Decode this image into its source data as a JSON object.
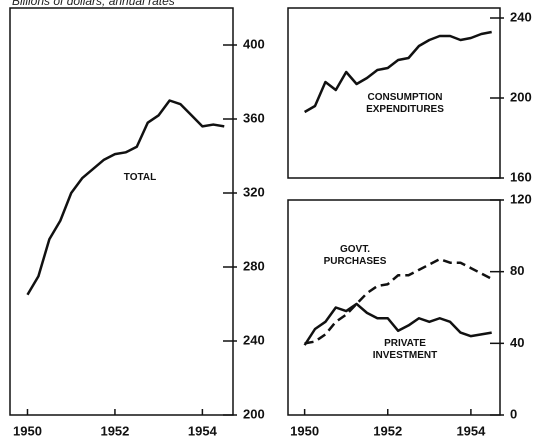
{
  "header": {
    "text": "Billions of dollars, annual rates"
  },
  "chart_data": [
    {
      "type": "line",
      "x": [
        1950,
        1950.25,
        1950.5,
        1950.75,
        1951,
        1951.25,
        1951.5,
        1951.75,
        1952,
        1952.25,
        1952.5,
        1952.75,
        1953,
        1953.25,
        1953.5,
        1953.75,
        1954,
        1954.25,
        1954.5
      ],
      "series": [
        {
          "name": "TOTAL",
          "color": "#111",
          "values": [
            265,
            275,
            295,
            305,
            320,
            328,
            333,
            338,
            341,
            342,
            345,
            358,
            362,
            370,
            368,
            362,
            356,
            357,
            356
          ]
        }
      ],
      "xlim": [
        1949.6,
        1954.7
      ],
      "xticks": [
        1950,
        1952,
        1954
      ],
      "ylim": [
        200,
        420
      ],
      "yticks": [
        200,
        240,
        280,
        320,
        360,
        400
      ]
    },
    {
      "type": "line",
      "x": [
        1950,
        1950.25,
        1950.5,
        1950.75,
        1951,
        1951.25,
        1951.5,
        1951.75,
        1952,
        1952.25,
        1952.5,
        1952.75,
        1953,
        1953.25,
        1953.5,
        1953.75,
        1954,
        1954.25,
        1954.5
      ],
      "series": [
        {
          "name": "CONSUMPTION EXPENDITURES",
          "color": "#111",
          "values": [
            193,
            196,
            208,
            204,
            213,
            207,
            210,
            214,
            215,
            219,
            220,
            226,
            229,
            231,
            231,
            229,
            230,
            232,
            233
          ]
        }
      ],
      "xlim": [
        1949.6,
        1954.7
      ],
      "ylim": [
        160,
        245
      ],
      "yticks": [
        160,
        200,
        240
      ]
    },
    {
      "type": "line",
      "x": [
        1950,
        1950.25,
        1950.5,
        1950.75,
        1951,
        1951.25,
        1951.5,
        1951.75,
        1952,
        1952.25,
        1952.5,
        1952.75,
        1953,
        1953.25,
        1953.5,
        1953.75,
        1954,
        1954.25,
        1954.5
      ],
      "series": [
        {
          "name": "GOVT. PURCHASES",
          "color": "#111",
          "dashed": true,
          "values": [
            40,
            41,
            45,
            52,
            56,
            62,
            68,
            72,
            73,
            78,
            78,
            81,
            84,
            87,
            85,
            85,
            82,
            79,
            76
          ]
        },
        {
          "name": "PRIVATE INVESTMENT",
          "color": "#111",
          "values": [
            39,
            48,
            52,
            60,
            58,
            62,
            57,
            54,
            54,
            47,
            50,
            54,
            52,
            54,
            52,
            46,
            44,
            45,
            46
          ]
        }
      ],
      "xlim": [
        1949.6,
        1954.7
      ],
      "xticks": [
        1950,
        1952,
        1954
      ],
      "ylim": [
        0,
        120
      ],
      "yticks": [
        0,
        40,
        80,
        120
      ]
    }
  ]
}
